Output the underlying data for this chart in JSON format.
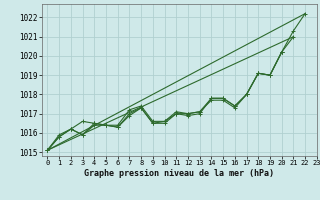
{
  "title": "Graphe pression niveau de la mer (hPa)",
  "bg_color": "#cfe9e9",
  "grid_color": "#b0d0d0",
  "line_color": "#2d6a2d",
  "xlim": [
    -0.5,
    23
  ],
  "ylim": [
    1014.8,
    1022.7
  ],
  "xticks": [
    0,
    1,
    2,
    3,
    4,
    5,
    6,
    7,
    8,
    9,
    10,
    11,
    12,
    13,
    14,
    15,
    16,
    17,
    18,
    19,
    20,
    21,
    22,
    23
  ],
  "yticks": [
    1015,
    1016,
    1017,
    1018,
    1019,
    1020,
    1021,
    1022
  ],
  "series_data": [
    {
      "points": [
        [
          0,
          1015.1
        ],
        [
          1,
          1015.8
        ],
        [
          2,
          1016.2
        ],
        [
          3,
          1015.9
        ],
        [
          4,
          1016.5
        ],
        [
          5,
          1016.4
        ],
        [
          6,
          1016.3
        ],
        [
          7,
          1017.0
        ],
        [
          8,
          1017.3
        ],
        [
          9,
          1016.5
        ],
        [
          10,
          1016.5
        ],
        [
          11,
          1017.0
        ],
        [
          12,
          1016.9
        ],
        [
          13,
          1017.0
        ],
        [
          14,
          1017.8
        ],
        [
          15,
          1017.8
        ],
        [
          16,
          1017.4
        ],
        [
          17,
          1018.0
        ],
        [
          18,
          1019.1
        ],
        [
          19,
          1019.0
        ],
        [
          20,
          1020.2
        ],
        [
          21,
          1021.3
        ],
        [
          22,
          1022.2
        ]
      ],
      "has_markers": true
    },
    {
      "points": [
        [
          0,
          1015.1
        ],
        [
          1,
          1015.9
        ],
        [
          2,
          1016.2
        ],
        [
          3,
          1015.9
        ],
        [
          4,
          1016.4
        ],
        [
          5,
          1016.4
        ],
        [
          6,
          1016.3
        ],
        [
          7,
          1016.9
        ],
        [
          8,
          1017.3
        ],
        [
          9,
          1016.5
        ],
        [
          10,
          1016.6
        ],
        [
          11,
          1017.0
        ],
        [
          12,
          1017.0
        ],
        [
          13,
          1017.1
        ],
        [
          14,
          1017.7
        ],
        [
          15,
          1017.7
        ],
        [
          16,
          1017.3
        ],
        [
          17,
          1018.0
        ],
        [
          18,
          1019.1
        ],
        [
          19,
          1019.0
        ],
        [
          20,
          1020.2
        ]
      ],
      "has_markers": true
    },
    {
      "points": [
        [
          0,
          1015.1
        ],
        [
          1,
          1015.8
        ],
        [
          2,
          1016.2
        ],
        [
          3,
          1016.6
        ],
        [
          4,
          1016.5
        ],
        [
          5,
          1016.4
        ],
        [
          6,
          1016.4
        ],
        [
          7,
          1017.2
        ],
        [
          8,
          1017.4
        ],
        [
          9,
          1016.6
        ],
        [
          10,
          1016.6
        ],
        [
          11,
          1017.1
        ],
        [
          12,
          1017.0
        ],
        [
          13,
          1017.1
        ],
        [
          14,
          1017.8
        ],
        [
          15,
          1017.8
        ],
        [
          16,
          1017.4
        ],
        [
          17,
          1018.0
        ],
        [
          18,
          1019.1
        ],
        [
          19,
          1019.0
        ],
        [
          20,
          1020.2
        ],
        [
          21,
          1021.0
        ]
      ],
      "has_markers": true
    }
  ],
  "straight_lines": [
    [
      [
        0,
        1015.1
      ],
      [
        22,
        1022.2
      ]
    ],
    [
      [
        0,
        1015.1
      ],
      [
        21,
        1021.0
      ]
    ]
  ]
}
